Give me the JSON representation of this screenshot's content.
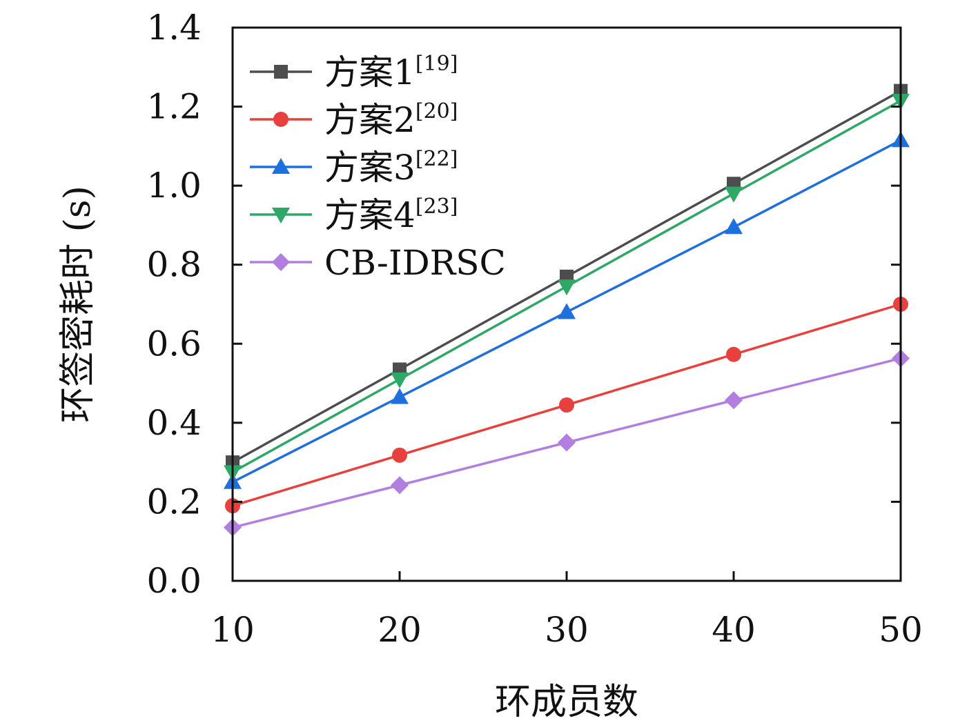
{
  "chart_data": {
    "type": "line",
    "xlabel": "环成员数",
    "ylabel": "环签密耗时 (s)",
    "x": [
      10,
      20,
      30,
      40,
      50
    ],
    "xticks": [
      "10",
      "20",
      "30",
      "40",
      "50"
    ],
    "yticks": [
      "0.0",
      "0.2",
      "0.4",
      "0.6",
      "0.8",
      "1.0",
      "1.2",
      "1.4"
    ],
    "xlim": [
      10,
      50
    ],
    "ylim": [
      0,
      1.4
    ],
    "grid": false,
    "legend_position": "top-left",
    "series": [
      {
        "name": "方案1",
        "ref": "[19]",
        "color": "#4d4d4d",
        "marker": "square",
        "values": [
          0.3,
          0.535,
          0.77,
          1.005,
          1.24
        ]
      },
      {
        "name": "方案2",
        "ref": "[20]",
        "color": "#e8403d",
        "marker": "circle",
        "values": [
          0.19,
          0.318,
          0.445,
          0.573,
          0.7
        ]
      },
      {
        "name": "方案3",
        "ref": "[22]",
        "color": "#1f6fdc",
        "marker": "triangle-up",
        "values": [
          0.25,
          0.465,
          0.68,
          0.895,
          1.115
        ]
      },
      {
        "name": "方案4",
        "ref": "[23]",
        "color": "#2ea866",
        "marker": "triangle-down",
        "values": [
          0.275,
          0.51,
          0.745,
          0.98,
          1.215
        ]
      },
      {
        "name": "CB-IDRSC",
        "ref": "",
        "color": "#b27ee0",
        "marker": "diamond",
        "values": [
          0.135,
          0.242,
          0.35,
          0.457,
          0.563
        ]
      }
    ]
  }
}
